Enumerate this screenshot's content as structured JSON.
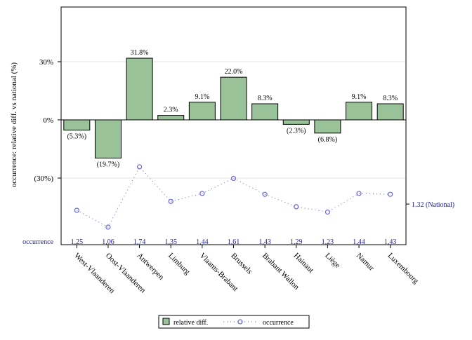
{
  "chart_data": {
    "type": "bar",
    "ylabel": "occurrence: relative diff. vs national (%)",
    "categories": [
      "West-Vlaanderen",
      "Oost-Vlaanderen",
      "Antwerpen",
      "Limburg",
      "Vlaams-Brabant",
      "Brussels",
      "Brabant Wallon",
      "Hainaut",
      "Liège",
      "Namur",
      "Luxembourg"
    ],
    "yticks": [
      {
        "value": 30,
        "label": "30%"
      },
      {
        "value": 0,
        "label": "0%"
      },
      {
        "value": -30,
        "label": "(30%)"
      }
    ],
    "ylim": [
      -66,
      60
    ],
    "series": [
      {
        "name": "relative diff.",
        "type": "bar",
        "color": "#99c299",
        "values": [
          -5.3,
          -19.7,
          31.8,
          2.3,
          9.1,
          22.0,
          8.3,
          -2.3,
          -6.8,
          9.1,
          8.3
        ],
        "labels": [
          "(5.3%)",
          "(19.7%)",
          "31.8%",
          "2.3%",
          "9.1%",
          "22.0%",
          "8.3%",
          "(2.3%)",
          "(6.8%)",
          "9.1%",
          "8.3%"
        ]
      },
      {
        "name": "occurrence",
        "type": "line",
        "color": "#6666e0",
        "values": [
          1.25,
          1.06,
          1.74,
          1.35,
          1.44,
          1.61,
          1.43,
          1.29,
          1.23,
          1.44,
          1.43
        ],
        "labels": [
          "1,25",
          "1,06",
          "1,74",
          "1,35",
          "1,44",
          "1,61",
          "1,43",
          "1,29",
          "1,23",
          "1,44",
          "1,43"
        ],
        "row_label": "occurrence",
        "reference_value": 1.32,
        "reference_label": "1.32 (National)"
      }
    ],
    "grid": true,
    "legend": "bottom"
  }
}
